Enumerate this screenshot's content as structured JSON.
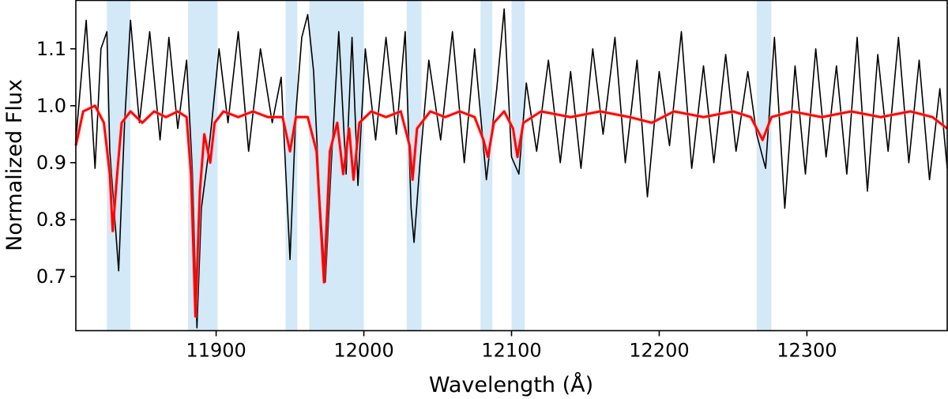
{
  "chart_data": {
    "type": "line",
    "xlabel": "Wavelength (Å)",
    "ylabel": "Normalized Flux",
    "xlim": [
      11805,
      12395
    ],
    "ylim": [
      0.605,
      1.185
    ],
    "x_ticks": [
      11900,
      12000,
      12100,
      12200,
      12300
    ],
    "y_ticks": [
      0.7,
      0.8,
      0.9,
      1.0,
      1.1
    ],
    "x_tick_labels": [
      "11900",
      "12000",
      "12100",
      "12200",
      "12300"
    ],
    "y_tick_labels": [
      "0.7",
      "0.8",
      "0.9",
      "1.0",
      "1.1"
    ],
    "grid": false,
    "highlight_regions": [
      [
        11826,
        11842
      ],
      [
        11881,
        11901
      ],
      [
        11947,
        11955
      ],
      [
        11963,
        12000
      ],
      [
        12029,
        12039
      ],
      [
        12079,
        12087
      ],
      [
        12100,
        12109
      ],
      [
        12266,
        12276
      ]
    ],
    "highlight_color": "#d4e9f7",
    "series": [
      {
        "style": "observed",
        "color": "#000000",
        "values": [
          [
            11805,
            0.94
          ],
          [
            11812,
            1.15
          ],
          [
            11818,
            0.89
          ],
          [
            11822,
            1.1
          ],
          [
            11826,
            1.13
          ],
          [
            11828,
            0.92
          ],
          [
            11832,
            0.78
          ],
          [
            11834,
            0.71
          ],
          [
            11838,
            0.97
          ],
          [
            11842,
            1.15
          ],
          [
            11848,
            0.97
          ],
          [
            11855,
            1.13
          ],
          [
            11862,
            0.94
          ],
          [
            11868,
            1.12
          ],
          [
            11874,
            0.96
          ],
          [
            11880,
            1.08
          ],
          [
            11884,
            0.88
          ],
          [
            11887,
            0.61
          ],
          [
            11890,
            0.82
          ],
          [
            11894,
            0.9
          ],
          [
            11897,
            0.97
          ],
          [
            11902,
            1.1
          ],
          [
            11908,
            0.97
          ],
          [
            11915,
            1.13
          ],
          [
            11922,
            0.92
          ],
          [
            11930,
            1.1
          ],
          [
            11938,
            0.97
          ],
          [
            11944,
            1.05
          ],
          [
            11950,
            0.73
          ],
          [
            11954,
            0.99
          ],
          [
            11958,
            1.12
          ],
          [
            11962,
            1.16
          ],
          [
            11966,
            1.06
          ],
          [
            11970,
            0.84
          ],
          [
            11974,
            0.69
          ],
          [
            11978,
            0.9
          ],
          [
            11983,
            1.13
          ],
          [
            11988,
            0.88
          ],
          [
            11992,
            1.12
          ],
          [
            11996,
            0.86
          ],
          [
            12001,
            1.1
          ],
          [
            12008,
            0.94
          ],
          [
            12015,
            1.12
          ],
          [
            12022,
            0.95
          ],
          [
            12028,
            1.13
          ],
          [
            12032,
            0.82
          ],
          [
            12034,
            0.76
          ],
          [
            12038,
            0.9
          ],
          [
            12044,
            1.08
          ],
          [
            12052,
            0.94
          ],
          [
            12060,
            1.13
          ],
          [
            12068,
            0.9
          ],
          [
            12075,
            1.1
          ],
          [
            12083,
            0.87
          ],
          [
            12090,
            1.03
          ],
          [
            12095,
            1.17
          ],
          [
            12100,
            0.91
          ],
          [
            12105,
            0.88
          ],
          [
            12110,
            1.04
          ],
          [
            12117,
            0.92
          ],
          [
            12125,
            1.08
          ],
          [
            12133,
            0.9
          ],
          [
            12140,
            1.06
          ],
          [
            12147,
            0.89
          ],
          [
            12155,
            1.1
          ],
          [
            12162,
            0.95
          ],
          [
            12170,
            1.12
          ],
          [
            12177,
            0.9
          ],
          [
            12185,
            1.08
          ],
          [
            12192,
            0.84
          ],
          [
            12200,
            1.06
          ],
          [
            12207,
            0.93
          ],
          [
            12215,
            1.13
          ],
          [
            12222,
            0.89
          ],
          [
            12230,
            1.07
          ],
          [
            12237,
            0.9
          ],
          [
            12245,
            1.09
          ],
          [
            12252,
            0.92
          ],
          [
            12260,
            1.06
          ],
          [
            12266,
            0.95
          ],
          [
            12272,
            0.89
          ],
          [
            12278,
            1.12
          ],
          [
            12285,
            0.82
          ],
          [
            12292,
            1.07
          ],
          [
            12299,
            0.88
          ],
          [
            12306,
            1.1
          ],
          [
            12313,
            0.91
          ],
          [
            12320,
            1.07
          ],
          [
            12327,
            0.88
          ],
          [
            12334,
            1.12
          ],
          [
            12341,
            0.85
          ],
          [
            12348,
            1.09
          ],
          [
            12355,
            0.92
          ],
          [
            12362,
            1.12
          ],
          [
            12369,
            0.9
          ],
          [
            12376,
            1.08
          ],
          [
            12383,
            0.87
          ],
          [
            12390,
            1.03
          ],
          [
            12395,
            0.89
          ]
        ]
      },
      {
        "style": "model",
        "color": "#ff0000",
        "values": [
          [
            11805,
            0.93
          ],
          [
            11810,
            0.99
          ],
          [
            11818,
            1.0
          ],
          [
            11824,
            0.97
          ],
          [
            11828,
            0.88
          ],
          [
            11830,
            0.78
          ],
          [
            11833,
            0.88
          ],
          [
            11836,
            0.97
          ],
          [
            11842,
            0.99
          ],
          [
            11850,
            0.97
          ],
          [
            11858,
            0.99
          ],
          [
            11866,
            0.98
          ],
          [
            11874,
            0.99
          ],
          [
            11880,
            0.98
          ],
          [
            11883,
            0.88
          ],
          [
            11886,
            0.63
          ],
          [
            11889,
            0.85
          ],
          [
            11892,
            0.95
          ],
          [
            11896,
            0.9
          ],
          [
            11899,
            0.97
          ],
          [
            11905,
            0.99
          ],
          [
            11915,
            0.98
          ],
          [
            11925,
            0.99
          ],
          [
            11935,
            0.98
          ],
          [
            11945,
            0.98
          ],
          [
            11950,
            0.92
          ],
          [
            11954,
            0.98
          ],
          [
            11962,
            0.98
          ],
          [
            11968,
            0.92
          ],
          [
            11973,
            0.69
          ],
          [
            11977,
            0.92
          ],
          [
            11982,
            0.97
          ],
          [
            11986,
            0.88
          ],
          [
            11990,
            0.96
          ],
          [
            11993,
            0.87
          ],
          [
            11997,
            0.97
          ],
          [
            12005,
            0.99
          ],
          [
            12015,
            0.98
          ],
          [
            12025,
            0.99
          ],
          [
            12031,
            0.93
          ],
          [
            12033,
            0.87
          ],
          [
            12036,
            0.96
          ],
          [
            12045,
            0.99
          ],
          [
            12055,
            0.98
          ],
          [
            12065,
            0.99
          ],
          [
            12075,
            0.98
          ],
          [
            12081,
            0.94
          ],
          [
            12084,
            0.91
          ],
          [
            12088,
            0.97
          ],
          [
            12095,
            0.99
          ],
          [
            12101,
            0.96
          ],
          [
            12104,
            0.91
          ],
          [
            12108,
            0.97
          ],
          [
            12120,
            0.99
          ],
          [
            12140,
            0.98
          ],
          [
            12160,
            0.99
          ],
          [
            12180,
            0.98
          ],
          [
            12195,
            0.97
          ],
          [
            12210,
            0.99
          ],
          [
            12230,
            0.98
          ],
          [
            12250,
            0.99
          ],
          [
            12262,
            0.98
          ],
          [
            12270,
            0.94
          ],
          [
            12276,
            0.98
          ],
          [
            12290,
            0.99
          ],
          [
            12310,
            0.98
          ],
          [
            12330,
            0.99
          ],
          [
            12350,
            0.98
          ],
          [
            12370,
            0.99
          ],
          [
            12385,
            0.98
          ],
          [
            12395,
            0.96
          ]
        ]
      }
    ]
  }
}
